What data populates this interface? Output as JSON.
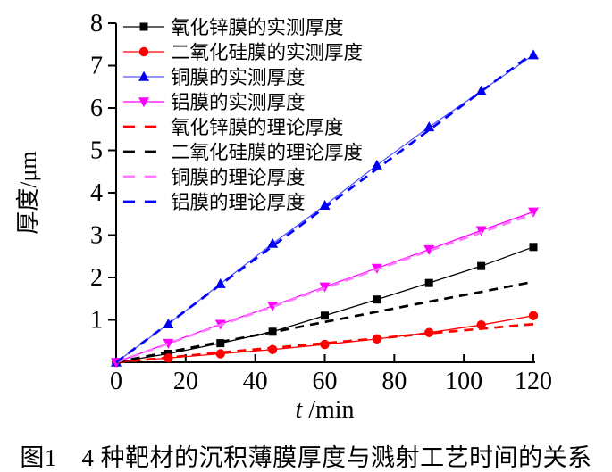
{
  "caption": "图1　4 种靶材的沉积薄膜厚度与溅射工艺时间的关系",
  "chart_data": {
    "type": "line",
    "title": "",
    "xlabel_italic": "t",
    "xlabel_rest": " /min",
    "ylabel": "厚度/μm",
    "xlim": [
      0,
      120
    ],
    "ylim": [
      0,
      8
    ],
    "xticks": [
      0,
      20,
      40,
      60,
      80,
      100,
      120
    ],
    "yticks": [
      1,
      2,
      3,
      4,
      5,
      6,
      7,
      8
    ],
    "grid": false,
    "legend_position": "top-left",
    "x": [
      0,
      15,
      30,
      45,
      60,
      75,
      90,
      105,
      120
    ],
    "series": [
      {
        "name": "氧化锌膜的实测厚度",
        "color": "#000000",
        "style": "solid",
        "marker": "square",
        "values": [
          0,
          0.2,
          0.45,
          0.72,
          1.1,
          1.48,
          1.87,
          2.27,
          2.72
        ]
      },
      {
        "name": "二氧化硅膜的实测厚度",
        "color": "#ff0000",
        "style": "solid",
        "marker": "circle",
        "values": [
          0,
          0.1,
          0.2,
          0.3,
          0.42,
          0.55,
          0.7,
          0.88,
          1.1
        ]
      },
      {
        "name": "铜膜的实测厚度",
        "color": "#0000ee",
        "line_color": "#5555ff",
        "style": "solid",
        "marker": "triangle-up",
        "values": [
          0,
          0.9,
          1.85,
          2.8,
          3.7,
          4.65,
          5.55,
          6.4,
          7.25
        ]
      },
      {
        "name": "铝膜的实测厚度",
        "color": "#ff00ff",
        "style": "solid",
        "marker": "triangle-down",
        "values": [
          0,
          0.45,
          0.9,
          1.33,
          1.78,
          2.22,
          2.66,
          3.11,
          3.55
        ]
      },
      {
        "name": "氧化锌膜的理论厚度",
        "color": "#ff0000",
        "style": "dashed",
        "marker": "none",
        "values": [
          0,
          0.11,
          0.23,
          0.34,
          0.45,
          0.56,
          0.68,
          0.79,
          0.9
        ]
      },
      {
        "name": "二氧化硅膜的理论厚度",
        "color": "#000000",
        "style": "dashed",
        "marker": "none",
        "values": [
          0,
          0.24,
          0.48,
          0.71,
          0.95,
          1.19,
          1.43,
          1.66,
          1.9
        ]
      },
      {
        "name": "铜膜的理论厚度",
        "color": "#ff77ff",
        "style": "dashed",
        "marker": "none",
        "values": [
          0,
          0.44,
          0.88,
          1.31,
          1.75,
          2.19,
          2.63,
          3.06,
          3.5
        ]
      },
      {
        "name": "铝膜的理论厚度",
        "color": "#0000ff",
        "style": "dashed",
        "marker": "none",
        "values": [
          0,
          0.91,
          1.83,
          2.74,
          3.65,
          4.56,
          5.48,
          6.39,
          7.3
        ]
      }
    ]
  }
}
